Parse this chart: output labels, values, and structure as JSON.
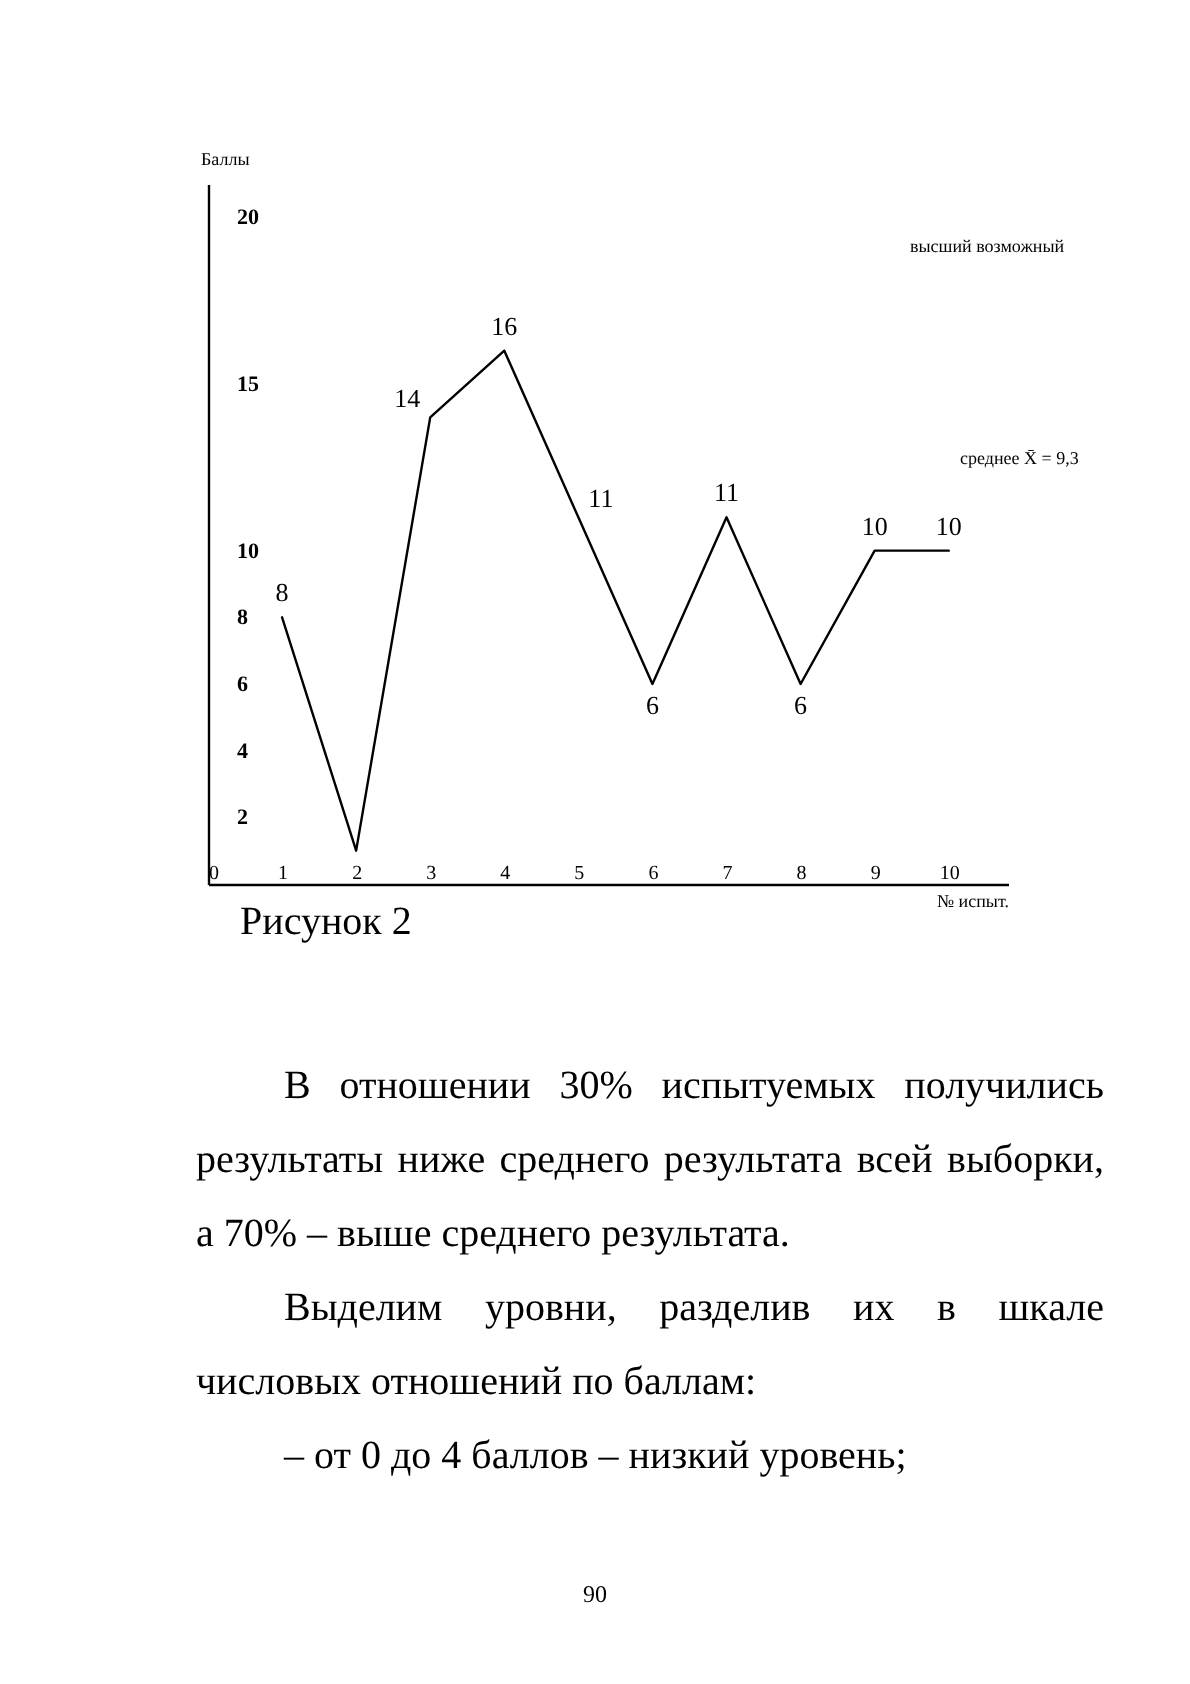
{
  "chart_data": {
    "type": "line",
    "xlabel": "№ испыт.",
    "ylabel": "Баллы",
    "x": [
      1,
      2,
      3,
      4,
      5,
      6,
      7,
      8,
      9,
      10
    ],
    "series": [
      {
        "color": "#000000",
        "values": [
          8,
          1,
          14,
          16,
          11,
          6,
          11,
          6,
          10,
          10
        ],
        "value_labels": [
          "8",
          null,
          "14",
          "16",
          "11",
          "6",
          "11",
          "6",
          "10",
          "10"
        ]
      }
    ],
    "xlim": [
      0,
      10.8
    ],
    "xticks": [
      0,
      1,
      2,
      3,
      4,
      5,
      6,
      7,
      8,
      9,
      10
    ],
    "ylim": [
      0,
      21
    ],
    "yticks": [
      2,
      4,
      6,
      8,
      10,
      15,
      20
    ],
    "grid": false,
    "legend": false,
    "marker": "none",
    "line_style": "solid",
    "annotations": [
      "высший возможный",
      "среднее X̄ = 9,3",
      "Рисунок 2",
      "В отношении 30% испытуемых получились результаты ниже среднего результата всей выборки, а 70% – выше среднего результата.",
      "Выделим уровни, разделив их в шкале числовых отношений по баллам:",
      "– от 0 до 4 баллов – низкий уровень;",
      "90"
    ]
  }
}
